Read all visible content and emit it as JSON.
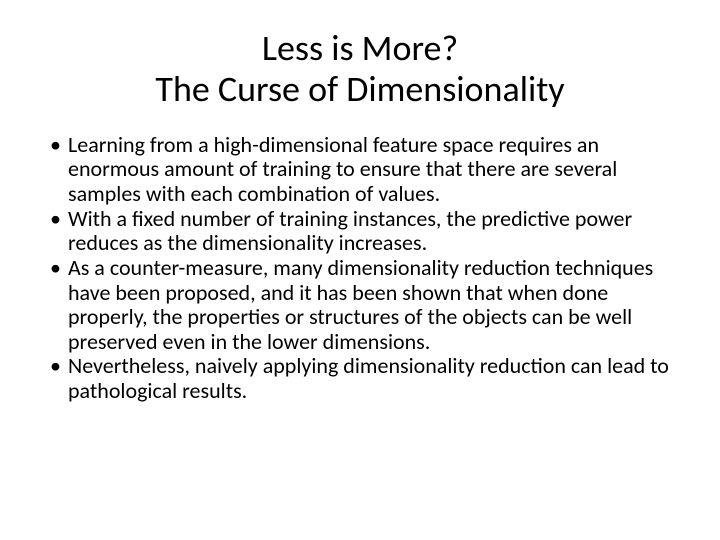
{
  "title": {
    "line1": "Less is More?",
    "line2": "The Curse of Dimensionality"
  },
  "bullets": [
    "Learning from a high-dimensional feature space requires an enormous amount of training to ensure that there are several samples with each combination of values.",
    "With a fixed number of training instances, the predictive power reduces as the dimensionality increases.",
    "As a counter-measure, many dimensionality reduction techniques have been proposed, and it has been shown that when done properly, the properties or structures of the objects can be well preserved even in the lower dimensions.",
    "Nevertheless, naively applying dimensionality reduction can lead to pathological results."
  ]
}
